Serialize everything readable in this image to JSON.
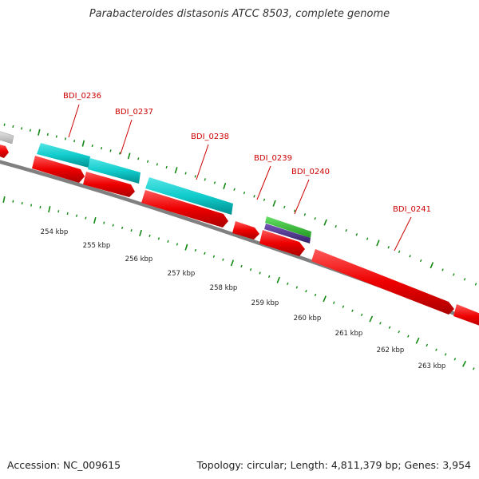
{
  "title": "Parabacteroides distasonis ATCC 8503, complete genome",
  "footer": {
    "accession": "Accession: NC_009615",
    "summary": "Topology: circular; Length: 4,811,379 bp; Genes: 3,954"
  },
  "colors": {
    "forward_cds": "#ff0000",
    "reverse_cds": "#00cccc",
    "rna_gene": "#33cc33",
    "rna_feature": "#553399",
    "other_feature": "#c8c8c8",
    "backbone": "#808080",
    "tick": "#118811",
    "gene_label": "#cc0000"
  },
  "genes": [
    {
      "label": "BDI_0236"
    },
    {
      "label": "BDI_0237"
    },
    {
      "label": "BDI_0238"
    },
    {
      "label": "BDI_0239"
    },
    {
      "label": "BDI_0240"
    },
    {
      "label": "BDI_0241"
    }
  ],
  "scale_labels": [
    "254 kbp",
    "255 kbp",
    "256 kbp",
    "257 kbp",
    "258 kbp",
    "259 kbp",
    "260 kbp",
    "261 kbp",
    "262 kbp",
    "263 kbp"
  ]
}
